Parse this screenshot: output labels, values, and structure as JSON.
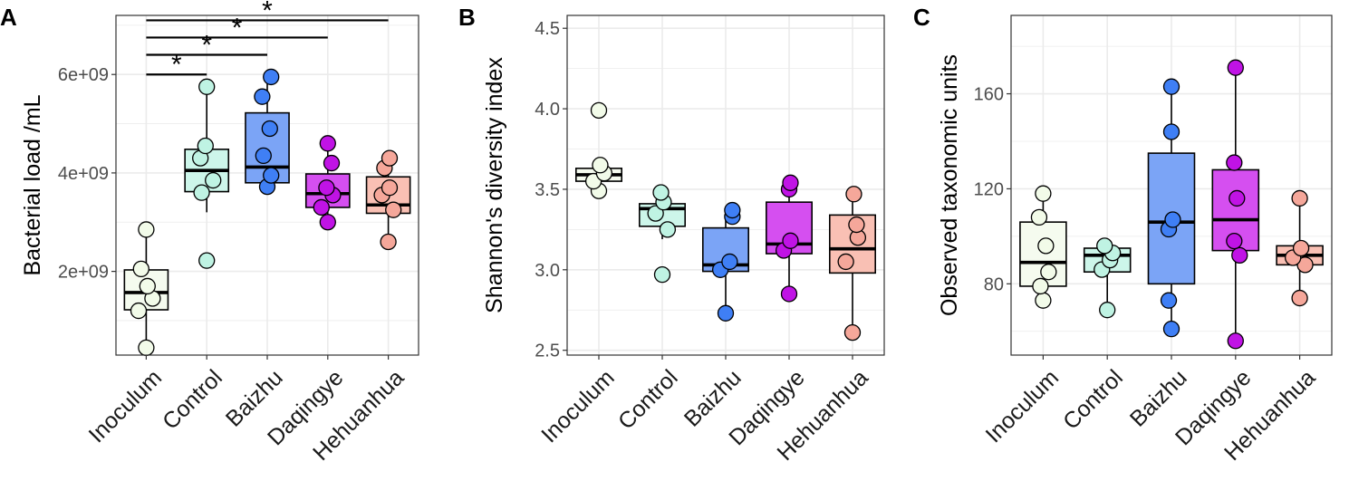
{
  "figure": {
    "colors": {
      "Inoculum": "#f2fbe9",
      "Control": "#bff3e3",
      "Baizhu": "#3f7ff5",
      "Daqingye": "#c013e5",
      "Hehuanhua": "#f5a79a",
      "box_Baizhu": "#7ba4f6",
      "box_Daqingye": "#d54ff0",
      "box_Hehuanhua": "#f9c0b4",
      "box_Inoculum": "#f5fbef",
      "box_Control": "#cdf6ea",
      "grid": "#ebebeb",
      "frame": "#333333"
    }
  },
  "chart_data": [
    {
      "type": "box",
      "panel_label": "A",
      "ylabel": "Bacterial load /mL",
      "xlabel": "",
      "categories": [
        "Inoculum",
        "Control",
        "Baizhu",
        "Daqingye",
        "Hehuanhua"
      ],
      "ylim": [
        300000000.0,
        7200000000.0
      ],
      "yticks": [
        2000000000.0,
        4000000000.0,
        6000000000.0
      ],
      "yticklabels": [
        "2e+09",
        "4e+09",
        "6e+09"
      ],
      "ygrid_minor": [
        1000000000.0,
        3000000000.0,
        5000000000.0,
        7000000000.0
      ],
      "grid": true,
      "boxes": [
        {
          "category": "Inoculum",
          "q1": 1220000000.0,
          "median": 1570000000.0,
          "q3": 2030000000.0,
          "whisker_low": 450000000.0,
          "whisker_high": 2850000000.0
        },
        {
          "category": "Control",
          "q1": 3620000000.0,
          "median": 4050000000.0,
          "q3": 4480000000.0,
          "whisker_low": 3200000000.0,
          "whisker_high": 5700000000.0
        },
        {
          "category": "Baizhu",
          "q1": 3800000000.0,
          "median": 4120000000.0,
          "q3": 5220000000.0,
          "whisker_low": 3750000000.0,
          "whisker_high": 5930000000.0
        },
        {
          "category": "Daqingye",
          "q1": 3300000000.0,
          "median": 3580000000.0,
          "q3": 3980000000.0,
          "whisker_low": 3000000000.0,
          "whisker_high": 4600000000.0
        },
        {
          "category": "Hehuanhua",
          "q1": 3180000000.0,
          "median": 3350000000.0,
          "q3": 3920000000.0,
          "whisker_low": 2600000000.0,
          "whisker_high": 4300000000.0
        }
      ],
      "points": [
        {
          "category": "Inoculum",
          "values": [
            450000000.0,
            1200000000.0,
            1450000000.0,
            1700000000.0,
            2050000000.0,
            2850000000.0
          ],
          "offsets": [
            0,
            -0.3,
            0.25,
            0.05,
            -0.2,
            0
          ]
        },
        {
          "category": "Control",
          "values": [
            2220000000.0,
            3600000000.0,
            3850000000.0,
            4300000000.0,
            4550000000.0,
            5750000000.0
          ],
          "offsets": [
            0,
            -0.2,
            0.25,
            -0.25,
            -0.05,
            0
          ]
        },
        {
          "category": "Baizhu",
          "values": [
            3720000000.0,
            3950000000.0,
            4350000000.0,
            4900000000.0,
            5550000000.0,
            5950000000.0
          ],
          "offsets": [
            0,
            0.15,
            -0.15,
            0.1,
            -0.2,
            0.15
          ]
        },
        {
          "category": "Daqingye",
          "values": [
            3000000000.0,
            3300000000.0,
            3550000000.0,
            3700000000.0,
            4200000000.0,
            4600000000.0
          ],
          "offsets": [
            0,
            -0.25,
            0.2,
            -0.05,
            0.15,
            0
          ]
        },
        {
          "category": "Hehuanhua",
          "values": [
            2600000000.0,
            3250000000.0,
            3550000000.0,
            3700000000.0,
            4100000000.0,
            4300000000.0
          ],
          "offsets": [
            0,
            0.2,
            -0.25,
            0.05,
            -0.15,
            0.05
          ]
        }
      ],
      "significance": [
        {
          "from": "Inoculum",
          "to": "Control",
          "y": 6000000000.0,
          "label": "*"
        },
        {
          "from": "Inoculum",
          "to": "Baizhu",
          "y": 6400000000.0,
          "label": "*"
        },
        {
          "from": "Inoculum",
          "to": "Daqingye",
          "y": 6750000000.0,
          "label": "*"
        },
        {
          "from": "Inoculum",
          "to": "Hehuanhua",
          "y": 7100000000.0,
          "label": "*"
        }
      ]
    },
    {
      "type": "box",
      "panel_label": "B",
      "ylabel": "Shannon's diversity index",
      "xlabel": "",
      "categories": [
        "Inoculum",
        "Control",
        "Baizhu",
        "Daqingye",
        "Hehuanhua"
      ],
      "ylim": [
        2.47,
        4.58
      ],
      "yticks": [
        2.5,
        3.0,
        3.5,
        4.0,
        4.5
      ],
      "yticklabels": [
        "2.5",
        "3.0",
        "3.5",
        "4.0",
        "4.5"
      ],
      "ygrid_minor": [
        2.75,
        3.25,
        3.75,
        4.25
      ],
      "grid": true,
      "boxes": [
        {
          "category": "Inoculum",
          "q1": 3.55,
          "median": 3.59,
          "q3": 3.63,
          "whisker_low": 3.49,
          "whisker_high": 3.65
        },
        {
          "category": "Control",
          "q1": 3.27,
          "median": 3.38,
          "q3": 3.41,
          "whisker_low": 3.19,
          "whisker_high": 3.47
        },
        {
          "category": "Baizhu",
          "q1": 2.99,
          "median": 3.03,
          "q3": 3.26,
          "whisker_low": 2.73,
          "whisker_high": 3.37
        },
        {
          "category": "Daqingye",
          "q1": 3.1,
          "median": 3.16,
          "q3": 3.42,
          "whisker_low": 2.85,
          "whisker_high": 3.54
        },
        {
          "category": "Hehuanhua",
          "q1": 2.98,
          "median": 3.13,
          "q3": 3.34,
          "whisker_low": 2.61,
          "whisker_high": 3.47
        }
      ],
      "points": [
        {
          "category": "Inoculum",
          "values": [
            3.49,
            3.55,
            3.6,
            3.65,
            3.99
          ],
          "offsets": [
            0,
            -0.2,
            0.2,
            0.05,
            0
          ]
        },
        {
          "category": "Control",
          "values": [
            2.97,
            3.25,
            3.35,
            3.42,
            3.48
          ],
          "offsets": [
            0,
            0.2,
            -0.25,
            0.05,
            -0.05
          ]
        },
        {
          "category": "Baizhu",
          "values": [
            2.73,
            3.0,
            3.05,
            3.33,
            3.37
          ],
          "offsets": [
            0,
            -0.2,
            0.15,
            0.25,
            0.25
          ]
        },
        {
          "category": "Daqingye",
          "values": [
            2.85,
            3.12,
            3.18,
            3.5,
            3.54
          ],
          "offsets": [
            0,
            -0.2,
            0.05,
            0,
            0.05
          ]
        },
        {
          "category": "Hehuanhua",
          "values": [
            2.61,
            3.05,
            3.2,
            3.28,
            3.47
          ],
          "offsets": [
            0,
            -0.25,
            0.2,
            0.15,
            0.05
          ]
        }
      ]
    },
    {
      "type": "box",
      "panel_label": "C",
      "ylabel": "Observed taxonomic units",
      "xlabel": "",
      "categories": [
        "Inoculum",
        "Control",
        "Baizhu",
        "Daqingye",
        "Hehuanhua"
      ],
      "ylim": [
        50,
        193
      ],
      "yticks": [
        80,
        120,
        160
      ],
      "yticklabels": [
        "80",
        "120",
        "160"
      ],
      "ygrid_minor": [
        60,
        100,
        140,
        180
      ],
      "grid": true,
      "boxes": [
        {
          "category": "Inoculum",
          "q1": 79,
          "median": 89,
          "q3": 106,
          "whisker_low": 73,
          "whisker_high": 118
        },
        {
          "category": "Control",
          "q1": 85,
          "median": 92,
          "q3": 95,
          "whisker_low": 69,
          "whisker_high": 97
        },
        {
          "category": "Baizhu",
          "q1": 80,
          "median": 106,
          "q3": 135,
          "whisker_low": 61,
          "whisker_high": 163
        },
        {
          "category": "Daqingye",
          "q1": 94,
          "median": 107,
          "q3": 128,
          "whisker_low": 56,
          "whisker_high": 171
        },
        {
          "category": "Hehuanhua",
          "q1": 88,
          "median": 92,
          "q3": 96,
          "whisker_low": 74,
          "whisker_high": 116
        }
      ],
      "points": [
        {
          "category": "Inoculum",
          "values": [
            73,
            79,
            85,
            96,
            108,
            118
          ],
          "offsets": [
            0,
            -0.1,
            0.2,
            0.1,
            -0.15,
            0
          ]
        },
        {
          "category": "Control",
          "values": [
            69,
            86,
            90,
            93,
            96
          ],
          "offsets": [
            0,
            -0.2,
            0.1,
            0.2,
            -0.1
          ]
        },
        {
          "category": "Baizhu",
          "values": [
            61,
            73,
            103,
            107,
            144,
            163
          ],
          "offsets": [
            0,
            -0.1,
            -0.1,
            0.05,
            0,
            0
          ]
        },
        {
          "category": "Daqingye",
          "values": [
            56,
            92,
            98,
            116,
            131,
            171
          ],
          "offsets": [
            0,
            0.15,
            -0.05,
            0.05,
            -0.05,
            0
          ]
        },
        {
          "category": "Hehuanhua",
          "values": [
            74,
            88,
            91,
            95,
            116
          ],
          "offsets": [
            0,
            0.2,
            -0.25,
            0.05,
            0
          ]
        }
      ]
    }
  ]
}
